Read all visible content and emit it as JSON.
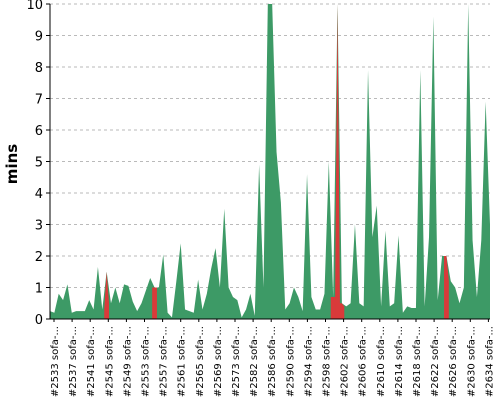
{
  "chart_data": {
    "type": "area",
    "ylabel": "mins",
    "ylim": [
      0,
      10
    ],
    "yticks": [
      0,
      1,
      2,
      3,
      4,
      5,
      6,
      7,
      8,
      9,
      10
    ],
    "grid": true,
    "colors": {
      "ok": "#3d9a66",
      "fail": "#d93a3a"
    },
    "tick_labels": [
      "#2533 sofa-...",
      "#2537 sofa-...",
      "#2541 sofa-...",
      "#2545 sofa-...",
      "#2549 sofa-...",
      "#2553 sofa-...",
      "#2557 sofa-...",
      "#2561 sofa-...",
      "#2565 sofa-...",
      "#2569 sofa-...",
      "#2573 sofa-...",
      "#2582 sofa-...",
      "#2586 sofa-...",
      "#2590 sofa-...",
      "#2594 sofa-...",
      "#2598 sofa-...",
      "#2602 sofa-...",
      "#2606 sofa-...",
      "#2610 sofa-...",
      "#2614 sofa-...",
      "#2618 sofa-...",
      "#2622 sofa-...",
      "#2626 sofa-...",
      "#2630 sofa-...",
      "#2634 sofa-..."
    ],
    "values": [
      0.25,
      0.2,
      0.8,
      0.6,
      1.1,
      0.2,
      0.25,
      0.25,
      0.25,
      0.6,
      0.3,
      1.65,
      0.3,
      1.5,
      0.5,
      1.0,
      0.5,
      1.1,
      1.05,
      0.55,
      0.25,
      0.5,
      0.9,
      1.3,
      1.0,
      1.0,
      2.05,
      0.2,
      0.05,
      1.2,
      2.4,
      0.3,
      0.25,
      0.2,
      1.25,
      0.3,
      0.8,
      1.6,
      2.25,
      1.0,
      3.5,
      1.0,
      0.7,
      0.6,
      0.05,
      0.3,
      0.8,
      0.1,
      4.9,
      1.0,
      10,
      10,
      5.3,
      3.7,
      0.3,
      0.5,
      1.0,
      0.7,
      0.25,
      4.6,
      0.7,
      0.3,
      0.3,
      0.8,
      5.0,
      0.7,
      10,
      0.5,
      0.4,
      0.5,
      3.0,
      0.5,
      0.4,
      7.9,
      2.6,
      3.6,
      0.4,
      2.8,
      0.4,
      0.5,
      2.65,
      0.2,
      0.4,
      0.35,
      0.35,
      7.9,
      0.4,
      2.6,
      9.6,
      0.6,
      2.0,
      2.0,
      1.2,
      1.0,
      0.5,
      1.0,
      10,
      2.5,
      0.7,
      2.5,
      6.9,
      3.0
    ],
    "failed": [
      13,
      24,
      65,
      66,
      67,
      91
    ]
  }
}
